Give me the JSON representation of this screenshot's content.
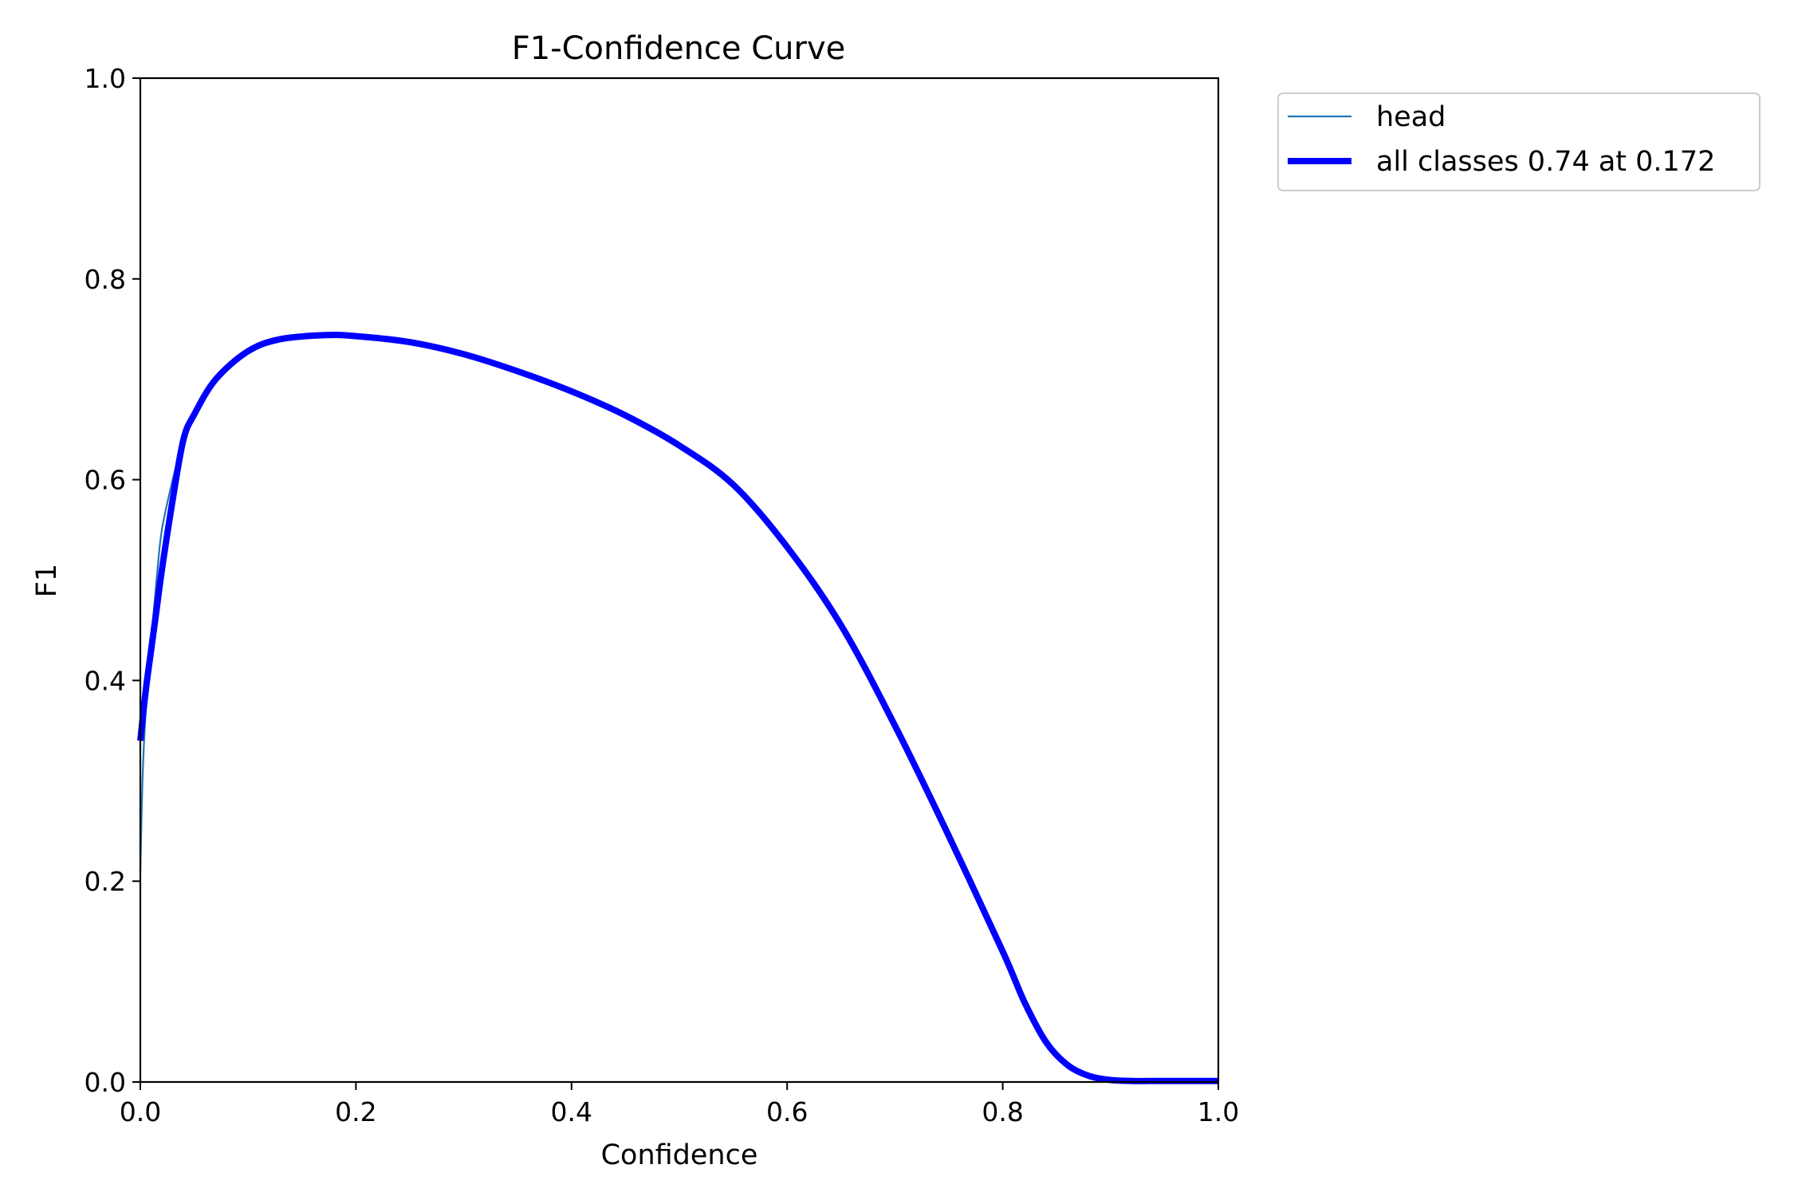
{
  "chart_data": {
    "type": "line",
    "title": "F1-Confidence Curve",
    "xlabel": "Confidence",
    "ylabel": "F1",
    "xlim": [
      0.0,
      1.0
    ],
    "ylim": [
      0.0,
      1.0
    ],
    "xticks": [
      "0.0",
      "0.2",
      "0.4",
      "0.6",
      "0.8",
      "1.0"
    ],
    "yticks": [
      "0.0",
      "0.2",
      "0.4",
      "0.6",
      "0.8",
      "1.0"
    ],
    "grid": false,
    "legend_position": "outside-top-right",
    "series": [
      {
        "name": "head",
        "color": "#1f77b4",
        "x": [
          0.0,
          0.002,
          0.005,
          0.01,
          0.015,
          0.02,
          0.03,
          0.04,
          0.05,
          0.07,
          0.1,
          0.13,
          0.172,
          0.2,
          0.25,
          0.3,
          0.35,
          0.4,
          0.45,
          0.5,
          0.55,
          0.6,
          0.65,
          0.7,
          0.75,
          0.8,
          0.82,
          0.84,
          0.86,
          0.88,
          0.9,
          0.92,
          0.95,
          1.0
        ],
        "values": [
          0.21,
          0.3,
          0.37,
          0.44,
          0.5,
          0.55,
          0.6,
          0.64,
          0.665,
          0.7,
          0.728,
          0.74,
          0.744,
          0.743,
          0.737,
          0.725,
          0.708,
          0.688,
          0.664,
          0.634,
          0.595,
          0.533,
          0.455,
          0.355,
          0.245,
          0.13,
          0.08,
          0.04,
          0.017,
          0.006,
          0.002,
          0.001,
          0.001,
          0.001
        ]
      },
      {
        "name": "all classes 0.74 at 0.172",
        "color": "#0000ff",
        "x": [
          0.0,
          0.005,
          0.01,
          0.015,
          0.02,
          0.03,
          0.04,
          0.05,
          0.07,
          0.1,
          0.13,
          0.172,
          0.2,
          0.25,
          0.3,
          0.35,
          0.4,
          0.45,
          0.5,
          0.55,
          0.6,
          0.65,
          0.7,
          0.75,
          0.8,
          0.82,
          0.84,
          0.86,
          0.88,
          0.9,
          0.92,
          0.95,
          1.0
        ],
        "values": [
          0.34,
          0.39,
          0.43,
          0.47,
          0.51,
          0.58,
          0.64,
          0.665,
          0.7,
          0.728,
          0.74,
          0.744,
          0.743,
          0.737,
          0.725,
          0.708,
          0.688,
          0.664,
          0.634,
          0.595,
          0.533,
          0.455,
          0.355,
          0.245,
          0.13,
          0.08,
          0.04,
          0.017,
          0.006,
          0.002,
          0.001,
          0.001,
          0.001
        ]
      }
    ]
  }
}
